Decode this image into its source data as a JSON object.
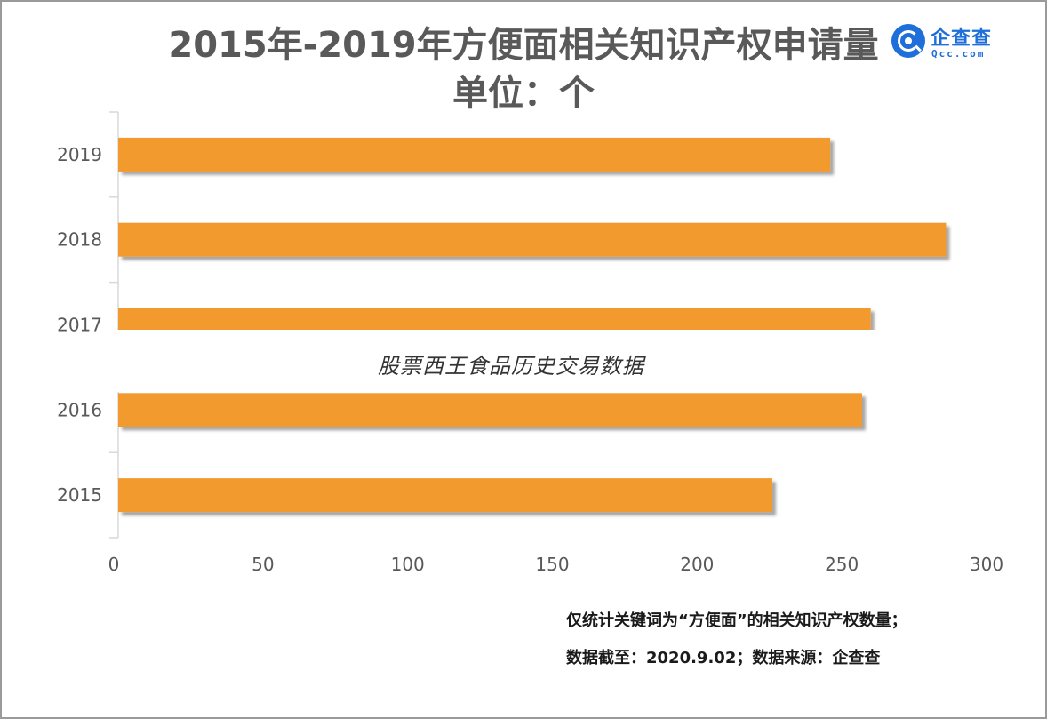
{
  "title": "2015年-2019年方便面相关知识产权申请量",
  "subtitle": "单位：个",
  "logo": {
    "name": "企查查",
    "domain": "Qcc.com",
    "icon": "magnifier-q-icon",
    "color": "#1e6fd9"
  },
  "watermark": "股票西王食品历史交易数据",
  "notes": [
    "仅统计关键词为“方便面”的相关知识产权数量；",
    "数据截至：2020.9.02；数据来源：企查查"
  ],
  "chart_data": {
    "type": "bar",
    "orientation": "horizontal",
    "categories": [
      "2019",
      "2018",
      "2017",
      "2016",
      "2015"
    ],
    "values": [
      246,
      286,
      260,
      257,
      226
    ],
    "xlim": [
      0,
      300
    ],
    "xticks": [
      0,
      50,
      100,
      150,
      200,
      250,
      300
    ],
    "grid": false,
    "legend": "none",
    "bar_color": "#f29a2e"
  }
}
